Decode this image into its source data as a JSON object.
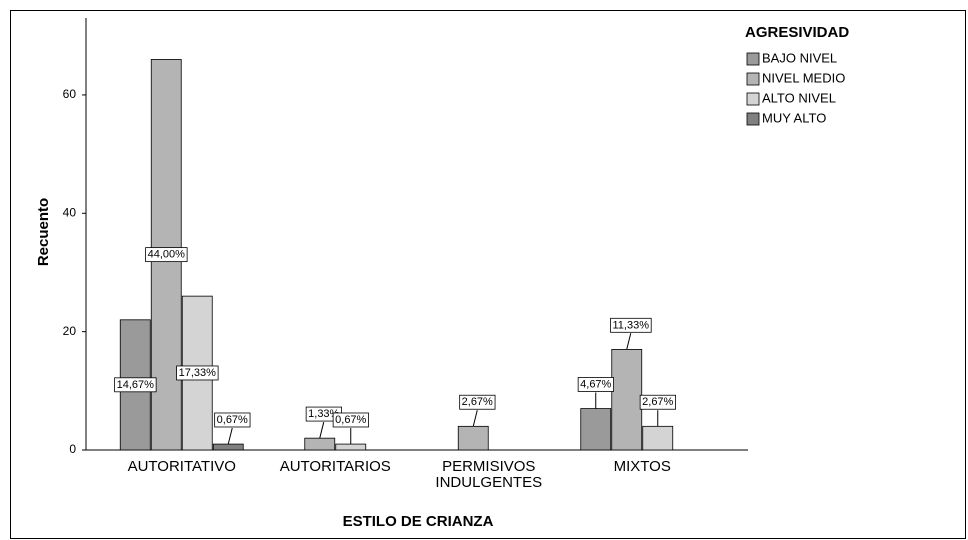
{
  "chart_data": {
    "type": "bar",
    "x_label": "ESTILO DE CRIANZA",
    "y_label": "Recuento",
    "legend_title": "AGRESIVIDAD",
    "legend_position": "upper right",
    "grid": false,
    "categories": [
      "AUTORITATIVO",
      "AUTORITARIOS",
      "PERMISIVOS INDULGENTES",
      "MIXTOS"
    ],
    "series": [
      {
        "name": "BAJO NIVEL",
        "color": "#9a9a9a",
        "values": [
          22,
          null,
          null,
          7
        ],
        "value_labels": [
          "14,67%",
          null,
          null,
          "4,67%"
        ]
      },
      {
        "name": "NIVEL MEDIO",
        "color": "#b4b4b4",
        "values": [
          66,
          2,
          4,
          17
        ],
        "value_labels": [
          "44,00%",
          "1,33%",
          "2,67%",
          "11,33%"
        ]
      },
      {
        "name": "ALTO NIVEL",
        "color": "#d4d4d4",
        "values": [
          26,
          1,
          null,
          4
        ],
        "value_labels": [
          "17,33%",
          "0,67%",
          null,
          "2,67%"
        ]
      },
      {
        "name": "MUY ALTO",
        "color": "#808080",
        "values": [
          1,
          null,
          null,
          null
        ],
        "value_labels": [
          "0,67%",
          null,
          null,
          null
        ]
      }
    ],
    "ylim": [
      0,
      73
    ],
    "yticks": [
      0,
      20,
      40,
      60
    ]
  }
}
